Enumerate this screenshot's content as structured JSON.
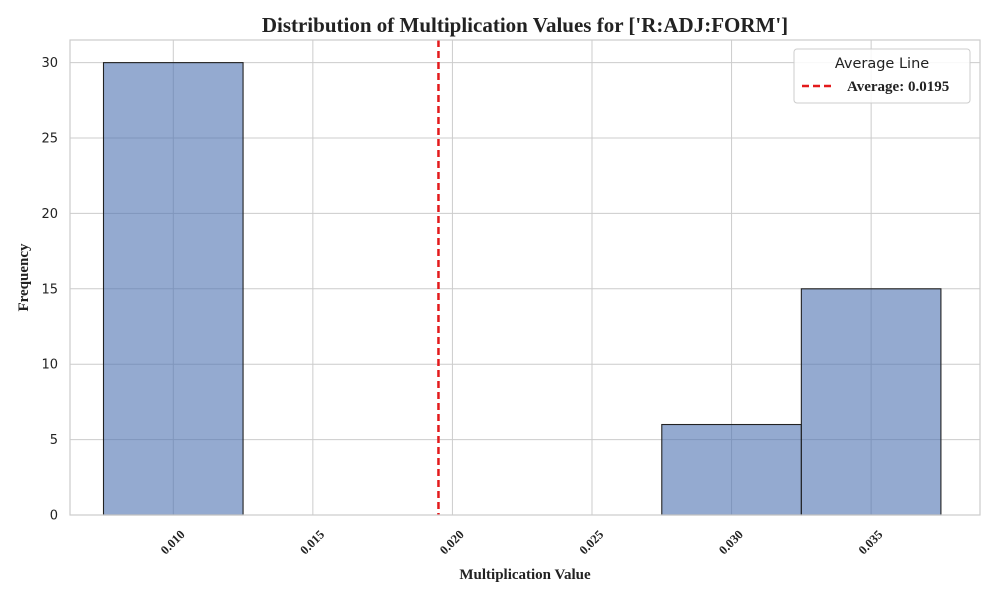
{
  "chart_data": {
    "type": "bar",
    "title": "Distribution of Multiplication Values for ['R:ADJ:FORM']",
    "xlabel": "Multiplication Value",
    "ylabel": "Frequency",
    "bins": [
      {
        "start": 0.0075,
        "end": 0.0125,
        "count": 30
      },
      {
        "start": 0.0125,
        "end": 0.0175,
        "count": 0
      },
      {
        "start": 0.0175,
        "end": 0.0225,
        "count": 0
      },
      {
        "start": 0.0225,
        "end": 0.0275,
        "count": 0
      },
      {
        "start": 0.0275,
        "end": 0.0325,
        "count": 6
      },
      {
        "start": 0.0325,
        "end": 0.0375,
        "count": 15
      }
    ],
    "xlim": [
      0.0063,
      0.0389
    ],
    "ylim": [
      0,
      31.5
    ],
    "x_ticks": [
      0.01,
      0.015,
      0.02,
      0.025,
      0.03,
      0.035
    ],
    "x_tick_labels": [
      "0.010",
      "0.015",
      "0.020",
      "0.025",
      "0.030",
      "0.035"
    ],
    "y_ticks": [
      0,
      5,
      10,
      15,
      20,
      25,
      30
    ],
    "y_tick_labels": [
      "0",
      "5",
      "10",
      "15",
      "20",
      "25",
      "30"
    ],
    "average": 0.0195,
    "average_color": "#e31a1c",
    "bar_color": "#4c72b0",
    "grid": true,
    "legend": {
      "title": "Average Line",
      "entries": [
        "Average: 0.0195"
      ],
      "placement": "top-right"
    }
  }
}
